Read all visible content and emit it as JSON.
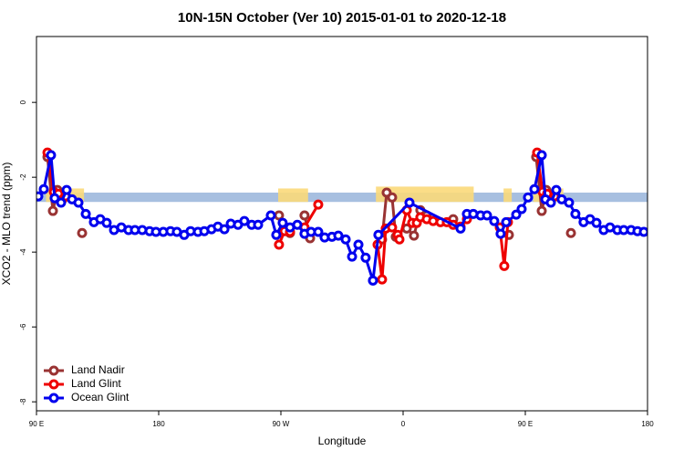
{
  "chart_data": {
    "type": "line",
    "title": "10N-15N October (Ver 10)   2015-01-01 to 2020-12-18",
    "xlabel": "Longitude",
    "ylabel": "XCO2 - MLO trend (ppm)",
    "xlim": [
      90,
      540
    ],
    "ylim": [
      -8.24,
      1.76
    ],
    "xticks": [
      {
        "value": 90,
        "label": "90 E"
      },
      180,
      {
        "value": 270,
        "label": "90 W"
      },
      {
        "value": 360,
        "label": "0"
      },
      {
        "value": 450,
        "label": "90 E"
      },
      {
        "value": 540,
        "label": "180"
      }
    ],
    "yticks": [
      0,
      -2,
      -4,
      -6,
      -8
    ],
    "legend": "bottomleft",
    "band": {
      "range": [
        -2.66,
        -2.41
      ],
      "color": "#a7bfe0"
    },
    "highlights": {
      "color": "#fbd97a",
      "ranges": [
        [
          97,
          125,
          -2.3
        ],
        [
          268,
          290,
          -2.3
        ],
        [
          340,
          412,
          -2.25
        ],
        [
          434,
          440,
          -2.3
        ],
        [
          456,
          478,
          -2.3
        ]
      ]
    },
    "series": [
      {
        "name": "Land Nadir",
        "color": "#993333",
        "x": [
          98.1,
          102.1,
          105.4,
          null,
          123.6,
          null,
          268.6,
          272.7,
          276.7,
          null,
          287.4,
          291.5,
          null,
          344.5,
          347.9,
          351.9,
          354.6,
          null,
          362.7,
          368.0,
          372.7,
          377.4,
          null,
          396.9,
          null,
          437.9,
          null,
          458.0,
          462.1,
          465.4,
          null,
          483.6
        ],
        "values": [
          -1.46,
          -2.9,
          -2.34,
          null,
          -3.49,
          null,
          -3.02,
          -3.41,
          -3.49,
          null,
          -3.02,
          -3.63,
          null,
          -3.66,
          -2.41,
          -2.54,
          -3.59,
          null,
          -3.37,
          -3.56,
          -2.88,
          -3.02,
          null,
          -3.12,
          null,
          -3.54,
          null,
          -1.46,
          -2.9,
          -2.34,
          null,
          -3.49
        ]
      },
      {
        "name": "Land Glint",
        "color": "#ee0000",
        "x": [
          98.1,
          102.8,
          106.1,
          108.8,
          111.5,
          null,
          268.6,
          272.7,
          276.7,
          null,
          287.4,
          297.5,
          null,
          341.2,
          344.5,
          347.2,
          351.9,
          356.0,
          357.3,
          362.7,
          366.7,
          370.1,
          372.7,
          377.4,
          382.1,
          387.5,
          392.2,
          396.9,
          402.3,
          407.0,
          null,
          431.2,
          434.5,
          437.2,
          null,
          458.7,
          462.7,
          466.1,
          468.8,
          471.5
        ],
        "values": [
          -1.34,
          -2.39,
          -2.44,
          -2.61,
          -2.51,
          null,
          -3.8,
          -3.44,
          -3.46,
          null,
          -3.34,
          -2.73,
          null,
          -3.8,
          -4.73,
          -3.37,
          -3.34,
          -3.54,
          -3.66,
          -2.88,
          -3.22,
          -3.22,
          -3.07,
          -3.12,
          -3.17,
          -3.2,
          -3.2,
          -3.27,
          -3.32,
          -3.12,
          null,
          -3.34,
          -4.37,
          -3.2,
          null,
          -1.34,
          -2.39,
          -2.44,
          -2.61,
          -2.51
        ]
      },
      {
        "name": "Ocean Glint",
        "color": "#0000ee",
        "x": [
          91.3,
          95.4,
          100.7,
          103.4,
          108.1,
          112.2,
          116.2,
          120.9,
          126.3,
          132.3,
          137.0,
          141.7,
          147.1,
          152.5,
          157.8,
          162.5,
          167.9,
          173.3,
          178.0,
          183.4,
          188.7,
          193.4,
          198.8,
          203.5,
          208.9,
          213.6,
          218.9,
          223.6,
          228.4,
          233.1,
          238.4,
          243.1,
          248.5,
          253.2,
          262.6,
          266.6,
          271.3,
          276.7,
          282.1,
          287.4,
          292.2,
          297.5,
          302.2,
          307.6,
          312.3,
          317.7,
          322.4,
          327.1,
          332.4,
          337.8,
          341.8,
          364.7,
          402.3,
          407.0,
          411.7,
          417.1,
          421.8,
          427.1,
          431.8,
          435.9,
          443.3,
          447.3,
          452.0,
          456.7,
          462.1,
          464.8,
          468.8,
          472.8,
          476.8,
          482.2,
          486.9,
          492.9,
          497.7,
          502.4,
          507.7,
          512.4,
          517.8,
          522.5,
          527.9,
          532.6,
          537.3
        ],
        "values": [
          -2.51,
          -2.32,
          -1.41,
          -2.56,
          -2.68,
          -2.34,
          -2.59,
          -2.68,
          -2.98,
          -3.2,
          -3.12,
          -3.22,
          -3.41,
          -3.34,
          -3.41,
          -3.41,
          -3.41,
          -3.44,
          -3.46,
          -3.46,
          -3.44,
          -3.46,
          -3.54,
          -3.44,
          -3.46,
          -3.44,
          -3.39,
          -3.32,
          -3.39,
          -3.24,
          -3.27,
          -3.17,
          -3.27,
          -3.27,
          -3.02,
          -3.54,
          -3.22,
          -3.34,
          -3.27,
          -3.51,
          -3.46,
          -3.46,
          -3.61,
          -3.59,
          -3.56,
          -3.66,
          -4.12,
          -3.8,
          -4.15,
          -4.76,
          -3.54,
          -2.68,
          -3.37,
          -2.98,
          -2.98,
          -3.02,
          -3.02,
          -3.17,
          -3.51,
          -3.2,
          -3.0,
          -2.85,
          -2.54,
          -2.32,
          -1.41,
          -2.59,
          -2.68,
          -2.34,
          -2.59,
          -2.68,
          -2.98,
          -3.2,
          -3.12,
          -3.22,
          -3.41,
          -3.34,
          -3.41,
          -3.41,
          -3.41,
          -3.44,
          -3.46
        ]
      }
    ]
  }
}
